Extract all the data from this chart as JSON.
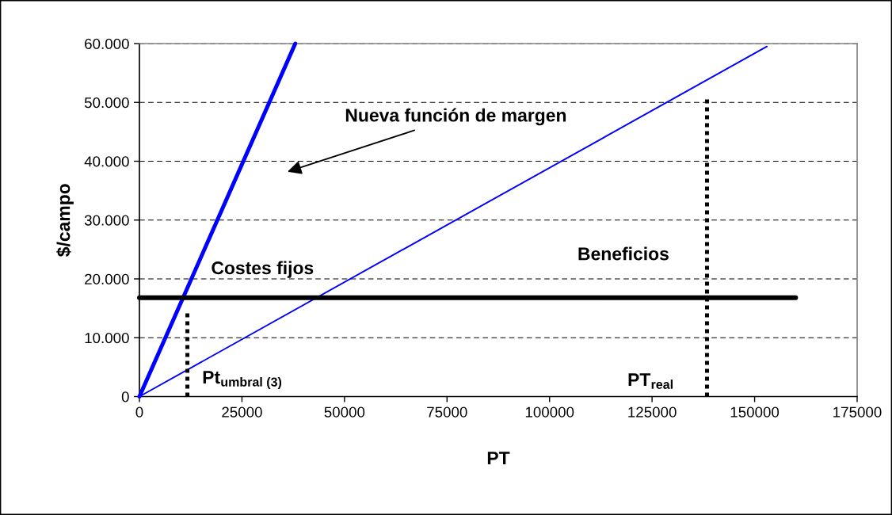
{
  "chart_data": {
    "type": "line",
    "xlabel": "PT",
    "ylabel": "$/campo",
    "xlim": [
      0,
      175000
    ],
    "xticks": [
      0,
      25000,
      50000,
      75000,
      100000,
      125000,
      150000,
      175000
    ],
    "ylim": [
      0,
      60000
    ],
    "yticks": [
      0,
      {
        "value": 10000,
        "label": "10.000"
      },
      {
        "value": 20000,
        "label": "20.000"
      },
      {
        "value": 30000,
        "label": "30.000"
      },
      {
        "value": 40000,
        "label": "40.000"
      },
      {
        "value": 50000,
        "label": "50.000"
      },
      {
        "value": 60000,
        "label": "60.000"
      }
    ],
    "grid": "y",
    "series": [
      {
        "color": "#0000ff",
        "x": [
          0,
          38000
        ],
        "values": [
          0,
          60000
        ],
        "line_style": "solid"
      },
      {
        "color": "#0000ff",
        "x": [
          0,
          153000
        ],
        "values": [
          0,
          59500
        ],
        "line_style": "solid"
      },
      {
        "color": "#000000",
        "x": [
          0,
          160000
        ],
        "values": [
          16800,
          16800
        ],
        "line_style": "solid"
      },
      {
        "color": "#000000",
        "x": [
          11700,
          11700
        ],
        "values": [
          0,
          14500
        ],
        "line_style": "dotted"
      },
      {
        "color": "#000000",
        "x": [
          138400,
          138400
        ],
        "values": [
          0,
          51000
        ],
        "line_style": "dotted"
      }
    ],
    "annotations": [
      "Nueva función de margen",
      "Costes fijos",
      "Beneficios",
      "Pt$_{umbral (3)}$",
      "PT$_{real}$"
    ]
  }
}
